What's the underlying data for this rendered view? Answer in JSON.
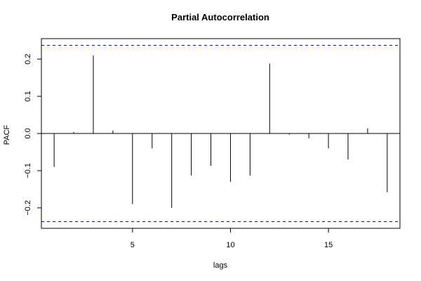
{
  "chart_data": {
    "type": "bar",
    "title": "Partial Autocorrelation",
    "xlabel": "lags",
    "ylabel": "PACF",
    "xlim": [
      0.35,
      18.65
    ],
    "ylim": [
      -0.255,
      0.255
    ],
    "x_ticks": [
      5,
      10,
      15
    ],
    "y_ticks": [
      -0.2,
      -0.1,
      0.0,
      0.1,
      0.2
    ],
    "y_tick_labels": [
      "−0.2",
      "−0.1",
      "0.0",
      "0.1",
      "0.2"
    ],
    "x_tick_labels": [
      "5",
      "10",
      "15"
    ],
    "lags": [
      1,
      2,
      3,
      4,
      5,
      6,
      7,
      8,
      9,
      10,
      11,
      12,
      13,
      14,
      15,
      16,
      17,
      18
    ],
    "values": [
      -0.09,
      0.004,
      0.21,
      0.008,
      -0.19,
      -0.04,
      -0.2,
      -0.113,
      -0.087,
      -0.13,
      -0.113,
      0.188,
      -0.003,
      -0.013,
      -0.04,
      -0.07,
      0.014,
      -0.158
    ],
    "confidence_bounds": [
      0.237,
      -0.237
    ],
    "colors": {
      "bars": "#000000",
      "confidence": "#0000ff",
      "zero_line": "#000000"
    },
    "grid": false
  }
}
